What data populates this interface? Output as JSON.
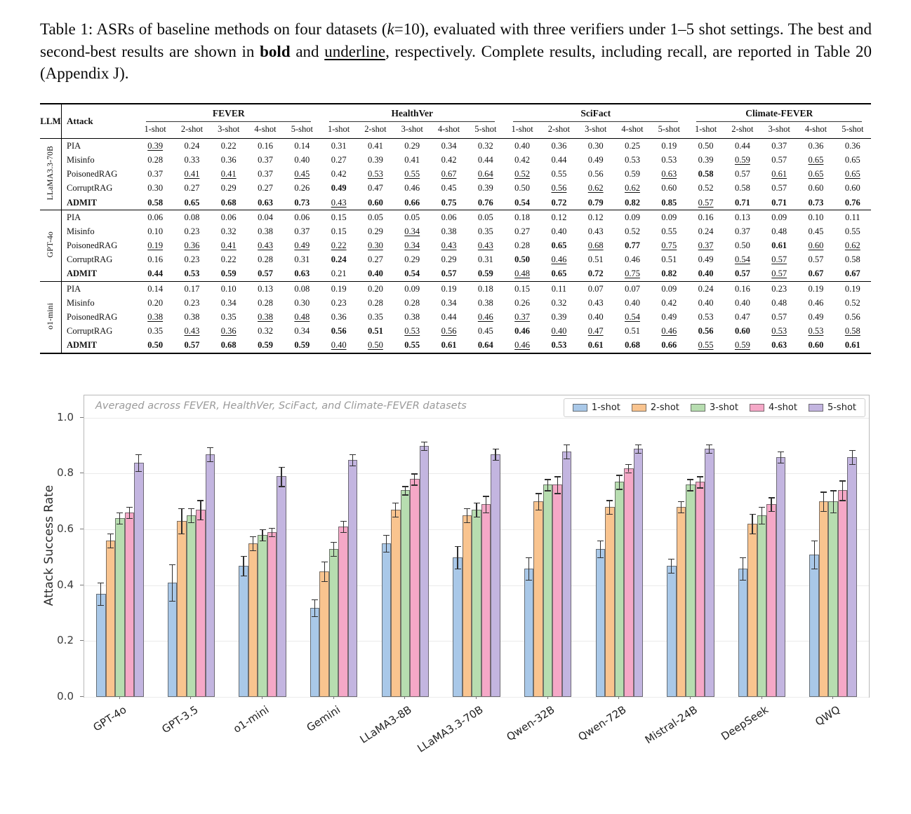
{
  "caption": {
    "p1": "Table 1: ASRs of baseline methods on four datasets (",
    "k": "k",
    "p2": "=10), evaluated with three verifiers under 1–5 shot settings. The best and second-best results are shown in ",
    "bold_word": "bold",
    "p3": " and ",
    "underline_word": "underline",
    "p4": ", respectively. Complete results, including recall, are reported in Table 20 (Appendix J)."
  },
  "table": {
    "col_llm": "LLM",
    "col_attack": "Attack",
    "datasets": [
      "FEVER",
      "HealthVer",
      "SciFact",
      "Climate-FEVER"
    ],
    "shots": [
      "1-shot",
      "2-shot",
      "3-shot",
      "4-shot",
      "5-shot"
    ],
    "groups": [
      {
        "llm": "LLaMA3.3-70B",
        "rows": [
          {
            "attack": "PIA",
            "cells": [
              "_0.39",
              "0.24",
              "0.22",
              "0.16",
              "0.14",
              "0.31",
              "0.41",
              "0.29",
              "0.34",
              "0.32",
              "0.40",
              "0.36",
              "0.30",
              "0.25",
              "0.19",
              "0.50",
              "0.44",
              "0.37",
              "0.36",
              "0.36"
            ]
          },
          {
            "attack": "Misinfo",
            "cells": [
              "0.28",
              "0.33",
              "0.36",
              "0.37",
              "0.40",
              "0.27",
              "0.39",
              "0.41",
              "0.42",
              "0.44",
              "0.42",
              "0.44",
              "0.49",
              "0.53",
              "0.53",
              "0.39",
              "_0.59",
              "0.57",
              "_0.65",
              "0.65"
            ]
          },
          {
            "attack": "PoisonedRAG",
            "cells": [
              "0.37",
              "_0.41",
              "_0.41",
              "0.37",
              "_0.45",
              "0.42",
              "_0.53",
              "_0.55",
              "_0.67",
              "_0.64",
              "_0.52",
              "0.55",
              "0.56",
              "0.59",
              "_0.63",
              "*0.58",
              "0.57",
              "_0.61",
              "_0.65",
              "_0.65"
            ]
          },
          {
            "attack": "CorruptRAG",
            "cells": [
              "0.30",
              "0.27",
              "0.29",
              "0.27",
              "0.26",
              "*0.49",
              "0.47",
              "0.46",
              "0.45",
              "0.39",
              "0.50",
              "_0.56",
              "_0.62",
              "_0.62",
              "0.60",
              "0.52",
              "0.58",
              "0.57",
              "0.60",
              "0.60"
            ]
          },
          {
            "attack": "ADMIT",
            "cells": [
              "*0.58",
              "*0.65",
              "*0.68",
              "*0.63",
              "*0.73",
              "_0.43",
              "*0.60",
              "*0.66",
              "*0.75",
              "*0.76",
              "*0.54",
              "*0.72",
              "*0.79",
              "*0.82",
              "*0.85",
              "_0.57",
              "*0.71",
              "*0.71",
              "*0.73",
              "*0.76"
            ]
          }
        ]
      },
      {
        "llm": "GPT-4o",
        "rows": [
          {
            "attack": "PIA",
            "cells": [
              "0.06",
              "0.08",
              "0.06",
              "0.04",
              "0.06",
              "0.15",
              "0.05",
              "0.05",
              "0.06",
              "0.05",
              "0.18",
              "0.12",
              "0.12",
              "0.09",
              "0.09",
              "0.16",
              "0.13",
              "0.09",
              "0.10",
              "0.11"
            ]
          },
          {
            "attack": "Misinfo",
            "cells": [
              "0.10",
              "0.23",
              "0.32",
              "0.38",
              "0.37",
              "0.15",
              "0.29",
              "_0.34",
              "0.38",
              "0.35",
              "0.27",
              "0.40",
              "0.43",
              "0.52",
              "0.55",
              "0.24",
              "0.37",
              "0.48",
              "0.45",
              "0.55"
            ]
          },
          {
            "attack": "PoisonedRAG",
            "cells": [
              "_0.19",
              "_0.36",
              "_0.41",
              "_0.43",
              "_0.49",
              "_0.22",
              "_0.30",
              "_0.34",
              "_0.43",
              "_0.43",
              "0.28",
              "*0.65",
              "_0.68",
              "*0.77",
              "_0.75",
              "_0.37",
              "0.50",
              "*0.61",
              "_0.60",
              "_0.62"
            ]
          },
          {
            "attack": "CorruptRAG",
            "cells": [
              "0.16",
              "0.23",
              "0.22",
              "0.28",
              "0.31",
              "*0.24",
              "0.27",
              "0.29",
              "0.29",
              "0.31",
              "*0.50",
              "_0.46",
              "0.51",
              "0.46",
              "0.51",
              "0.49",
              "_0.54",
              "_0.57",
              "0.57",
              "0.58"
            ]
          },
          {
            "attack": "ADMIT",
            "cells": [
              "*0.44",
              "*0.53",
              "*0.59",
              "*0.57",
              "*0.63",
              "0.21",
              "*0.40",
              "*0.54",
              "*0.57",
              "*0.59",
              "_0.48",
              "*0.65",
              "*0.72",
              "_0.75",
              "*0.82",
              "*0.40",
              "*0.57",
              "_0.57",
              "*0.67",
              "*0.67"
            ]
          }
        ]
      },
      {
        "llm": "o1-mini",
        "rows": [
          {
            "attack": "PIA",
            "cells": [
              "0.14",
              "0.17",
              "0.10",
              "0.13",
              "0.08",
              "0.19",
              "0.20",
              "0.09",
              "0.19",
              "0.18",
              "0.15",
              "0.11",
              "0.07",
              "0.07",
              "0.09",
              "0.24",
              "0.16",
              "0.23",
              "0.19",
              "0.19"
            ]
          },
          {
            "attack": "Misinfo",
            "cells": [
              "0.20",
              "0.23",
              "0.34",
              "0.28",
              "0.30",
              "0.23",
              "0.28",
              "0.28",
              "0.34",
              "0.38",
              "0.26",
              "0.32",
              "0.43",
              "0.40",
              "0.42",
              "0.40",
              "0.40",
              "0.48",
              "0.46",
              "0.52"
            ]
          },
          {
            "attack": "PoisonedRAG",
            "cells": [
              "_0.38",
              "0.38",
              "0.35",
              "_0.38",
              "_0.48",
              "0.36",
              "0.35",
              "0.38",
              "0.44",
              "_0.46",
              "_0.37",
              "0.39",
              "0.40",
              "_0.54",
              "0.49",
              "0.53",
              "0.47",
              "0.57",
              "0.49",
              "0.56"
            ]
          },
          {
            "attack": "CorruptRAG",
            "cells": [
              "0.35",
              "_0.43",
              "_0.36",
              "0.32",
              "0.34",
              "*0.56",
              "*0.51",
              "_0.53",
              "_0.56",
              "0.45",
              "*0.46",
              "_0.40",
              "_0.47",
              "0.51",
              "_0.46",
              "*0.56",
              "*0.60",
              "_0.53",
              "_0.53",
              "_0.58"
            ]
          },
          {
            "attack": "ADMIT",
            "cells": [
              "*0.50",
              "*0.57",
              "*0.68",
              "*0.59",
              "*0.59",
              "_0.40",
              "_0.50",
              "*0.55",
              "*0.61",
              "*0.64",
              "_0.46",
              "*0.53",
              "*0.61",
              "*0.68",
              "*0.66",
              "_0.55",
              "_0.59",
              "*0.63",
              "*0.60",
              "*0.61"
            ]
          }
        ]
      }
    ]
  },
  "chart_data": {
    "type": "bar",
    "title": "Averaged across FEVER, HealthVer, SciFact, and Climate-FEVER datasets",
    "xlabel": "",
    "ylabel": "Attack Success Rate",
    "ylim": [
      0,
      1.08
    ],
    "yticks": [
      0.0,
      0.2,
      0.4,
      0.6,
      0.8,
      1.0
    ],
    "grid": true,
    "legend_position": "top-right",
    "categories": [
      "GPT-4o",
      "GPT-3.5",
      "o1-mini",
      "Gemini",
      "LLaMA3-8B",
      "LLaMA3.3-70B",
      "Qwen-32B",
      "Qwen-72B",
      "Mistral-24B",
      "DeepSeek",
      "QWQ"
    ],
    "series": [
      {
        "name": "1-shot",
        "color": "#a9c8e8",
        "values": [
          0.37,
          0.41,
          0.47,
          0.32,
          0.55,
          0.5,
          0.46,
          0.53,
          0.47,
          0.46,
          0.51
        ],
        "errors": [
          0.04,
          0.065,
          0.035,
          0.03,
          0.03,
          0.04,
          0.04,
          0.03,
          0.025,
          0.04,
          0.05
        ]
      },
      {
        "name": "2-shot",
        "color": "#f9c48f",
        "values": [
          0.56,
          0.63,
          0.55,
          0.45,
          0.67,
          0.65,
          0.7,
          0.68,
          0.68,
          0.62,
          0.7
        ],
        "errors": [
          0.025,
          0.045,
          0.025,
          0.035,
          0.025,
          0.025,
          0.03,
          0.025,
          0.02,
          0.035,
          0.035
        ]
      },
      {
        "name": "3-shot",
        "color": "#b7ddb0",
        "values": [
          0.64,
          0.65,
          0.58,
          0.53,
          0.74,
          0.67,
          0.76,
          0.77,
          0.76,
          0.65,
          0.7
        ],
        "errors": [
          0.02,
          0.025,
          0.02,
          0.025,
          0.015,
          0.025,
          0.02,
          0.025,
          0.02,
          0.03,
          0.04
        ]
      },
      {
        "name": "4-shot",
        "color": "#f5a8c7",
        "values": [
          0.66,
          0.67,
          0.59,
          0.61,
          0.78,
          0.69,
          0.76,
          0.82,
          0.77,
          0.69,
          0.74
        ],
        "errors": [
          0.02,
          0.035,
          0.015,
          0.02,
          0.02,
          0.03,
          0.03,
          0.015,
          0.02,
          0.025,
          0.035
        ]
      },
      {
        "name": "5-shot",
        "color": "#c3b5e0",
        "values": [
          0.84,
          0.87,
          0.79,
          0.85,
          0.9,
          0.87,
          0.88,
          0.89,
          0.89,
          0.86,
          0.86
        ],
        "errors": [
          0.03,
          0.025,
          0.035,
          0.02,
          0.015,
          0.02,
          0.025,
          0.015,
          0.015,
          0.02,
          0.025
        ]
      }
    ]
  }
}
